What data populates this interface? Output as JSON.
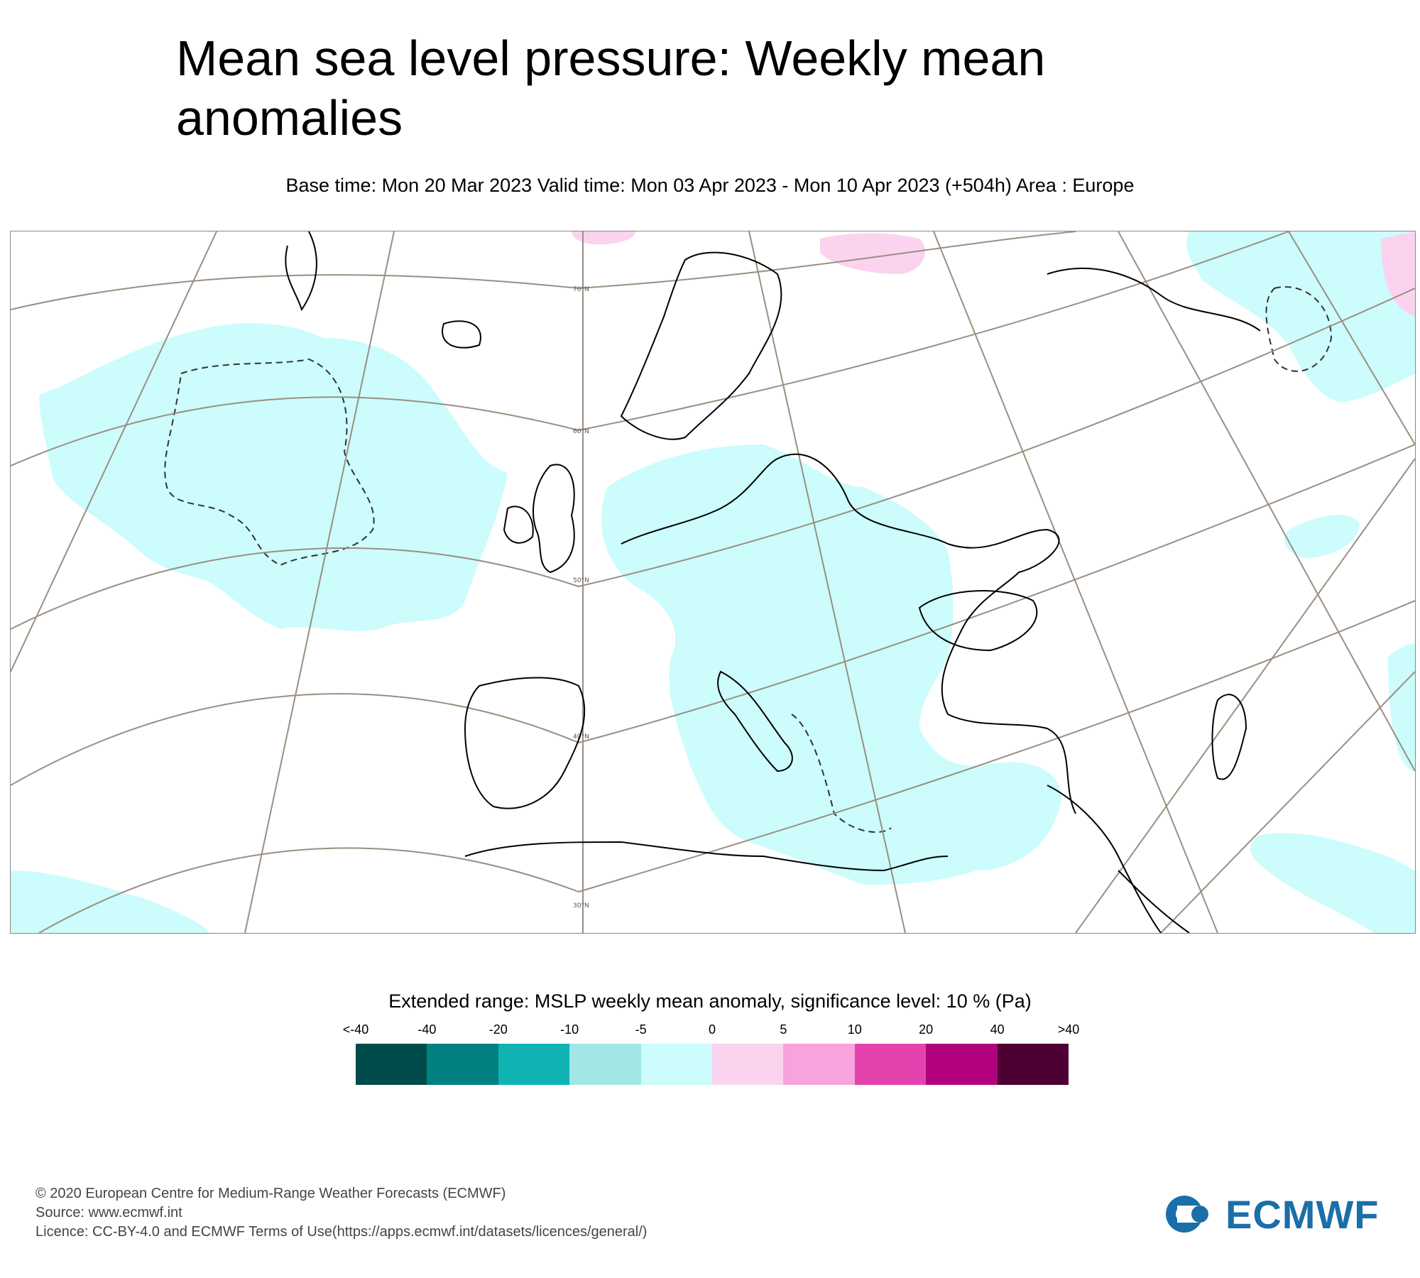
{
  "header": {
    "title": "Mean sea level pressure: Weekly mean anomalies",
    "subtitle": "Base time: Mon 20 Mar 2023 Valid time: Mon 03 Apr 2023 - Mon 10 Apr 2023 (+504h) Area : Europe"
  },
  "map": {
    "area": "Europe",
    "latitude_labels": [
      "70°N",
      "60°N",
      "50°N",
      "40°N",
      "30°N"
    ],
    "colors": {
      "neg_weak": "#ccfcfc",
      "pos_weak": "#fbd3ef",
      "land_outline": "#000000",
      "graticule": "#9a8f80"
    }
  },
  "legend": {
    "title": "Extended range: MSLP weekly mean anomaly, significance level: 10 % (Pa)",
    "labels": [
      "<-40",
      "-40",
      "-20",
      "-10",
      "-5",
      "0",
      "5",
      "10",
      "20",
      "40",
      ">40"
    ],
    "colors": [
      "#004c4c",
      "#008080",
      "#10b2b2",
      "#a2e6e6",
      "#ccfcfc",
      "#fbd3ef",
      "#f8a3db",
      "#e443ad",
      "#b1017d",
      "#4c0034"
    ]
  },
  "footer": {
    "line1": "© 2020 European Centre for Medium-Range Weather Forecasts (ECMWF)",
    "line2": "Source: www.ecmwf.int",
    "line3": "Licence: CC-BY-4.0 and ECMWF Terms of Use(https://apps.ecmwf.int/datasets/licences/general/)",
    "logo_text": "ECMWF"
  }
}
